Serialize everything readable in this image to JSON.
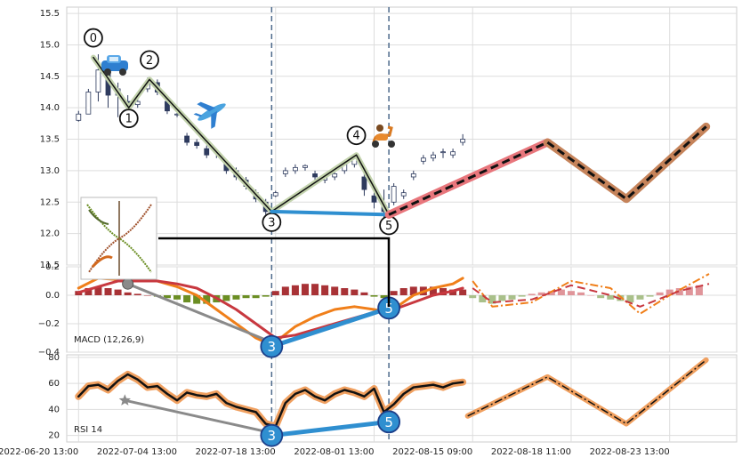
{
  "chart_data": [
    {
      "type": "candlestick",
      "xlim": [
        -1.2,
        66.8
      ],
      "ylim": [
        11.5,
        15.6
      ],
      "yticks": [
        11.5,
        {
          "value": 12,
          "label": "12.0"
        },
        12.5,
        {
          "value": 13,
          "label": "13.0"
        },
        13.5,
        {
          "value": 14,
          "label": "14.0"
        },
        14.5,
        {
          "value": 15,
          "label": "15.0"
        },
        15.5
      ],
      "grid": true,
      "candles": {
        "x": [
          0,
          1,
          2,
          3,
          4,
          5,
          6,
          7,
          8,
          9,
          10,
          11,
          12,
          13,
          14,
          15,
          16,
          17,
          18,
          19,
          20,
          21,
          22,
          23,
          24,
          25,
          26,
          27,
          28,
          29,
          30,
          31,
          32,
          33,
          34,
          35,
          36,
          37,
          38,
          39
        ],
        "open": [
          13.8,
          13.9,
          14.25,
          14.6,
          14.2,
          14.1,
          14.05,
          14.3,
          14.4,
          14.1,
          13.9,
          13.55,
          13.45,
          13.35,
          13.3,
          13.1,
          13.0,
          12.85,
          12.65,
          12.5,
          12.6,
          12.95,
          13.0,
          13.05,
          12.95,
          12.85,
          12.9,
          13.0,
          13.1,
          12.9,
          12.6,
          12.45,
          12.5,
          12.6,
          12.9,
          13.15,
          13.2,
          13.3,
          13.25,
          13.45
        ],
        "high": [
          13.95,
          14.3,
          14.85,
          14.7,
          14.4,
          14.2,
          14.15,
          14.48,
          14.45,
          14.15,
          13.95,
          13.6,
          13.5,
          13.4,
          13.35,
          13.15,
          13.05,
          12.9,
          12.7,
          12.55,
          12.68,
          13.05,
          13.1,
          13.1,
          13.0,
          12.95,
          13.0,
          13.15,
          13.25,
          13.0,
          12.7,
          12.7,
          12.8,
          12.7,
          13.0,
          13.25,
          13.3,
          13.35,
          13.35,
          13.58
        ],
        "low": [
          13.78,
          13.9,
          14.1,
          14.0,
          13.85,
          13.95,
          14.0,
          14.25,
          14.2,
          13.9,
          13.85,
          13.4,
          13.35,
          13.2,
          13.2,
          12.95,
          12.85,
          12.7,
          12.5,
          12.3,
          12.58,
          12.9,
          12.95,
          13.0,
          12.85,
          12.8,
          12.85,
          12.95,
          13.05,
          12.6,
          12.4,
          12.25,
          12.45,
          12.55,
          12.85,
          13.1,
          13.15,
          13.2,
          13.2,
          13.4
        ],
        "close": [
          13.9,
          14.25,
          14.6,
          14.2,
          14.3,
          14.05,
          14.1,
          14.4,
          14.25,
          13.95,
          13.9,
          13.45,
          13.4,
          13.25,
          13.3,
          13.0,
          12.9,
          12.75,
          12.55,
          12.35,
          12.65,
          13.0,
          13.05,
          13.08,
          12.9,
          12.9,
          12.95,
          13.1,
          13.2,
          12.7,
          12.5,
          12.35,
          12.75,
          12.65,
          12.95,
          13.2,
          13.25,
          13.3,
          13.3,
          13.5
        ],
        "up_color": "#ffffff",
        "down_color": "#2e3b5e",
        "edge_color": "#2e3b5e"
      },
      "vlines": {
        "x": [
          19.6,
          31.5
        ],
        "color": "#4d6a8c"
      },
      "lines": [
        {
          "x": [
            1.5,
            5.1,
            7.2,
            19.6,
            28.2,
            31.5
          ],
          "values": [
            14.8,
            14.0,
            14.45,
            12.35,
            13.25,
            12.3
          ],
          "color": "#111111",
          "width": 1.5,
          "halo": "#c3d3ad",
          "point_labels": [
            "0",
            "1",
            "2",
            "3",
            "4",
            "5"
          ],
          "label_fill": "#ffffff"
        },
        {
          "x": [
            19.6,
            31.5
          ],
          "values": [
            12.35,
            12.3
          ],
          "color": "#2f8fd0",
          "width": 4
        },
        {
          "x": [
            31.5,
            47.6
          ],
          "values": [
            12.3,
            13.45
          ],
          "color": "#111111",
          "width": 3,
          "style": "dashed",
          "halo": "#e8767c"
        },
        {
          "x": [
            47.6,
            55.6,
            63.7
          ],
          "values": [
            13.45,
            12.55,
            13.7
          ],
          "color": "#111111",
          "width": 3,
          "style": "dashed",
          "halo": "#c5835a"
        }
      ]
    },
    {
      "type": "macd",
      "label": "MACD (12,26,9)",
      "xlim": [
        -1.2,
        66.8
      ],
      "ylim": [
        -0.4,
        0.2
      ],
      "yticks": [
        {
          "value": -0.4,
          "label": "−0.4"
        },
        {
          "value": -0.2,
          "label": "−0.2"
        },
        {
          "value": 0,
          "label": "0.0"
        },
        {
          "value": 0.2,
          "label": "0.2"
        }
      ],
      "grid": true,
      "bars": [
        {
          "x": [
            0,
            1,
            2,
            3,
            4,
            5,
            6,
            7,
            8,
            9,
            10,
            11,
            12,
            13,
            14,
            15,
            16,
            17,
            18,
            19,
            20,
            21,
            22,
            23,
            24,
            25,
            26,
            27,
            28,
            29,
            30,
            31,
            32,
            33,
            34,
            35,
            36,
            37,
            38,
            39
          ],
          "values": [
            0.03,
            0.05,
            0.06,
            0.05,
            0.04,
            0.02,
            0.01,
            0,
            -0.01,
            -0.02,
            -0.03,
            -0.05,
            -0.06,
            -0.06,
            -0.05,
            -0.04,
            -0.03,
            -0.02,
            -0.02,
            -0.01,
            0.03,
            0.06,
            0.07,
            0.08,
            0.08,
            0.07,
            0.06,
            0.05,
            0.04,
            0.02,
            -0.01,
            -0.02,
            0.03,
            0.05,
            0.06,
            0.06,
            0.06,
            0.05,
            0.04,
            0.04
          ],
          "up_color": "#a83236",
          "down_color": "#6b8e23"
        },
        {
          "x": [
            40,
            41,
            42,
            43,
            44,
            45,
            46,
            47,
            48,
            49,
            50,
            51,
            52,
            53,
            54,
            55,
            56,
            57,
            58,
            59,
            60,
            61,
            62,
            63
          ],
          "values": [
            -0.02,
            -0.05,
            -0.06,
            -0.04,
            -0.03,
            -0.01,
            0.01,
            0.02,
            0.03,
            0.04,
            0.03,
            0.02,
            0,
            -0.02,
            -0.03,
            -0.04,
            -0.05,
            -0.03,
            -0.01,
            0.02,
            0.04,
            0.05,
            0.06,
            0.07
          ],
          "up_color": "#e0959a",
          "down_color": "#a9c08a"
        }
      ],
      "lines": [
        {
          "x": [
            0,
            2,
            4,
            6,
            8,
            10,
            12,
            14,
            16,
            18,
            19.6,
            22,
            24,
            26,
            28,
            30,
            31.5,
            34,
            36,
            38,
            39
          ],
          "values": [
            0.05,
            0.12,
            0.11,
            0.1,
            0.1,
            0.06,
            0,
            -0.1,
            -0.2,
            -0.3,
            -0.35,
            -0.22,
            -0.15,
            -0.1,
            -0.08,
            -0.1,
            -0.12,
            0,
            0.05,
            0.08,
            0.12
          ],
          "color": "#f07f1a",
          "width": 3
        },
        {
          "x": [
            0,
            2,
            4,
            6,
            8,
            10,
            12,
            14,
            16,
            18,
            20,
            22,
            24,
            26,
            28,
            30,
            32,
            34,
            36,
            38,
            39
          ],
          "values": [
            0.02,
            0.06,
            0.1,
            0.1,
            0.1,
            0.08,
            0.05,
            -0.02,
            -0.1,
            -0.2,
            -0.3,
            -0.28,
            -0.24,
            -0.2,
            -0.16,
            -0.12,
            -0.1,
            -0.05,
            0,
            0.03,
            0.05
          ],
          "color": "#c8383f",
          "width": 3
        },
        {
          "x": [
            40,
            42,
            46,
            50,
            54,
            57,
            60,
            64
          ],
          "values": [
            0.1,
            -0.08,
            -0.05,
            0.1,
            0.05,
            -0.13,
            0,
            0.15
          ],
          "color": "#f07f1a",
          "width": 2,
          "style": "dashdot"
        },
        {
          "x": [
            40,
            42,
            46,
            50,
            54,
            57,
            61,
            64
          ],
          "values": [
            0.05,
            -0.05,
            -0.03,
            0.07,
            0,
            -0.08,
            0.03,
            0.08
          ],
          "color": "#c8383f",
          "width": 2,
          "style": "dashed"
        },
        {
          "x": [
            5,
            19.6
          ],
          "values": [
            0.08,
            -0.33
          ],
          "color": "#8a8a8a",
          "width": 3,
          "marker": "circle"
        },
        {
          "x": [
            19.6,
            31.5
          ],
          "values": [
            -0.36,
            -0.09
          ],
          "color": "#2f8fd0",
          "width": 5,
          "point_labels": [
            "3",
            "5"
          ],
          "label_fill": "#2f8fd0"
        }
      ]
    },
    {
      "type": "line",
      "label": "RSI 14",
      "xlim": [
        -1.2,
        66.8
      ],
      "ylim": [
        15,
        82
      ],
      "yticks": [
        20,
        40,
        60,
        80
      ],
      "xticks": [
        {
          "value": 0,
          "label": "2022-06-20 13:00"
        },
        {
          "value": 10,
          "label": "2022-07-04 13:00"
        },
        {
          "value": 20,
          "label": "2022-07-18 13:00"
        },
        {
          "value": 30,
          "label": "2022-08-01 13:00"
        },
        {
          "value": 40,
          "label": "2022-08-15 09:00"
        },
        {
          "value": 50,
          "label": "2022-08-18 11:00"
        },
        {
          "value": 60,
          "label": "2022-08-23 13:00"
        }
      ],
      "grid": true,
      "lines": [
        {
          "x": [
            0,
            1,
            2,
            3,
            4,
            5,
            6,
            7,
            8,
            9,
            10,
            11,
            12,
            13,
            14,
            15,
            16,
            17,
            18,
            19,
            20,
            21,
            22,
            23,
            24,
            25,
            26,
            27,
            28,
            29,
            30,
            31,
            32,
            33,
            34,
            35,
            36,
            37,
            38,
            39
          ],
          "values": [
            50,
            58,
            59,
            55,
            62,
            67,
            63,
            57,
            58,
            52,
            47,
            53,
            51,
            50,
            52,
            45,
            42,
            40,
            38,
            29,
            27,
            45,
            52,
            55,
            50,
            47,
            52,
            55,
            53,
            50,
            56,
            38,
            44,
            52,
            57,
            58,
            59,
            57,
            60,
            61
          ],
          "color": "#111111",
          "width": 2.5,
          "halo": "#f0a060"
        },
        {
          "x": [
            39.5,
            47.6,
            55.6,
            63.7
          ],
          "values": [
            35,
            65,
            29,
            78
          ],
          "color": "#111111",
          "width": 1.5,
          "style": "dashdot",
          "halo": "#f0a060"
        },
        {
          "x": [
            4.7,
            19.6
          ],
          "values": [
            47,
            22
          ],
          "color": "#8a8a8a",
          "width": 3,
          "marker": "star"
        },
        {
          "x": [
            19.6,
            31.5
          ],
          "values": [
            20,
            30.5
          ],
          "color": "#2f8fd0",
          "width": 5,
          "point_labels": [
            "3",
            "5"
          ],
          "label_fill": "#2f8fd0"
        }
      ]
    }
  ]
}
